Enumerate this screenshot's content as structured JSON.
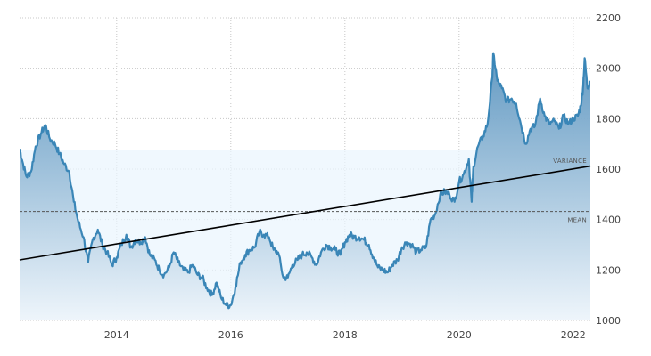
{
  "chart_data": {
    "type": "area",
    "title": "",
    "xlabel": "",
    "ylabel": "",
    "xlim": [
      2012.3,
      2022.3
    ],
    "ylim": [
      1000,
      2200
    ],
    "x_ticks": [
      2014,
      2016,
      2018,
      2020,
      2022
    ],
    "y_ticks": [
      1000,
      1200,
      1400,
      1600,
      1800,
      2000,
      2200
    ],
    "grid": true,
    "y_axis_position": "right",
    "colors": {
      "line": "#3a86b7",
      "area_top": "#5a94bf",
      "area_bottom": "#eef5fb",
      "trend": "#000000",
      "band": "#eaf5fd",
      "mean": "#555555"
    },
    "annotations": {
      "variance_label": "VARIANCE",
      "mean_label": "MEAN"
    },
    "mean": 1432,
    "variance_band": [
      1000,
      1675
    ],
    "trend_line": {
      "x": [
        2012.3,
        2022.3
      ],
      "y": [
        1240,
        1612
      ]
    },
    "series": [
      {
        "x": [
          2012.3,
          2012.35,
          2012.42,
          2012.5,
          2012.58,
          2012.67,
          2012.75,
          2012.83,
          2012.92,
          2013.0,
          2013.08,
          2013.17,
          2013.25,
          2013.33,
          2013.42,
          2013.5,
          2013.58,
          2013.67,
          2013.75,
          2013.83,
          2013.92,
          2014.0,
          2014.08,
          2014.17,
          2014.25,
          2014.33,
          2014.42,
          2014.5,
          2014.58,
          2014.67,
          2014.75,
          2014.83,
          2014.92,
          2015.0,
          2015.08,
          2015.17,
          2015.25,
          2015.33,
          2015.42,
          2015.5,
          2015.58,
          2015.67,
          2015.75,
          2015.83,
          2015.92,
          2016.0,
          2016.08,
          2016.17,
          2016.25,
          2016.33,
          2016.42,
          2016.5,
          2016.58,
          2016.67,
          2016.75,
          2016.83,
          2016.92,
          2017.0,
          2017.08,
          2017.17,
          2017.25,
          2017.33,
          2017.42,
          2017.5,
          2017.58,
          2017.67,
          2017.75,
          2017.83,
          2017.92,
          2018.0,
          2018.08,
          2018.17,
          2018.25,
          2018.33,
          2018.42,
          2018.5,
          2018.58,
          2018.67,
          2018.75,
          2018.83,
          2018.92,
          2019.0,
          2019.08,
          2019.17,
          2019.25,
          2019.33,
          2019.42,
          2019.5,
          2019.58,
          2019.67,
          2019.75,
          2019.83,
          2019.92,
          2020.0,
          2020.08,
          2020.17,
          2020.22,
          2020.25,
          2020.33,
          2020.42,
          2020.5,
          2020.58,
          2020.6,
          2020.67,
          2020.75,
          2020.83,
          2020.92,
          2021.0,
          2021.08,
          2021.17,
          2021.25,
          2021.33,
          2021.42,
          2021.5,
          2021.58,
          2021.67,
          2021.75,
          2021.83,
          2021.92,
          2022.0,
          2022.08,
          2022.13,
          2022.17,
          2022.2,
          2022.25,
          2022.3
        ],
        "y": [
          1680,
          1630,
          1570,
          1590,
          1690,
          1740,
          1775,
          1720,
          1700,
          1660,
          1620,
          1590,
          1470,
          1390,
          1330,
          1230,
          1320,
          1360,
          1300,
          1270,
          1220,
          1250,
          1300,
          1340,
          1290,
          1320,
          1310,
          1330,
          1260,
          1240,
          1200,
          1180,
          1210,
          1270,
          1230,
          1200,
          1190,
          1220,
          1180,
          1170,
          1130,
          1100,
          1150,
          1090,
          1060,
          1060,
          1130,
          1230,
          1260,
          1280,
          1290,
          1350,
          1340,
          1330,
          1280,
          1270,
          1170,
          1170,
          1220,
          1240,
          1260,
          1270,
          1250,
          1220,
          1270,
          1300,
          1290,
          1280,
          1260,
          1310,
          1340,
          1330,
          1330,
          1320,
          1300,
          1250,
          1210,
          1200,
          1190,
          1220,
          1240,
          1290,
          1310,
          1300,
          1270,
          1280,
          1290,
          1400,
          1420,
          1500,
          1510,
          1500,
          1470,
          1550,
          1580,
          1640,
          1470,
          1610,
          1690,
          1730,
          1780,
          1960,
          2060,
          1950,
          1920,
          1870,
          1880,
          1860,
          1780,
          1700,
          1760,
          1770,
          1880,
          1810,
          1780,
          1790,
          1760,
          1810,
          1780,
          1800,
          1810,
          1850,
          1920,
          2040,
          1920,
          1950
        ]
      }
    ]
  }
}
